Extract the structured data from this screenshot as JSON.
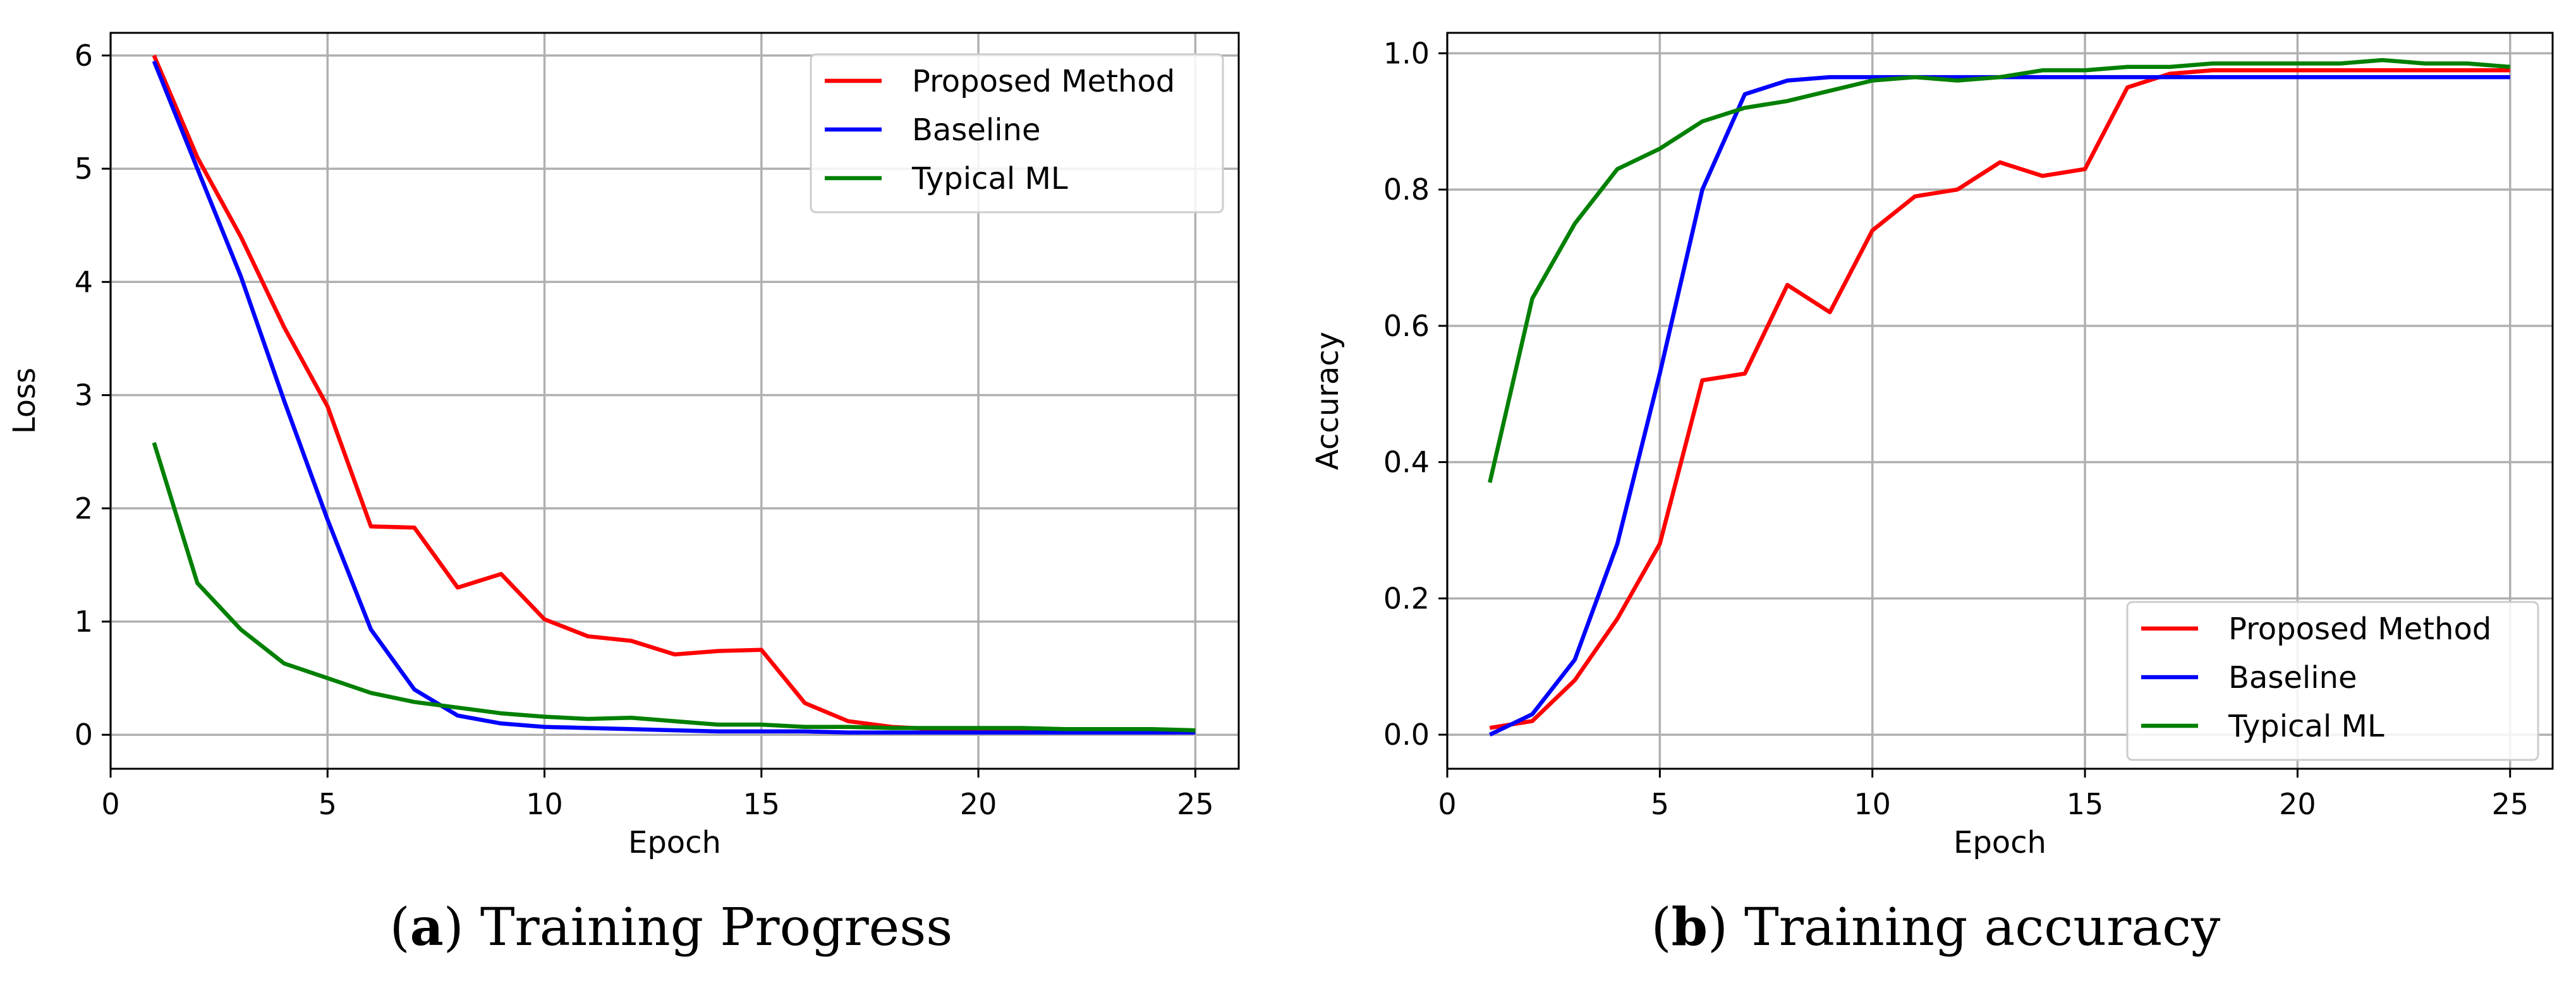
{
  "chart_data": [
    {
      "type": "line",
      "title": "",
      "xlabel": "Epoch",
      "ylabel": "Loss",
      "xlim": [
        0,
        26
      ],
      "ylim": [
        -0.3,
        6.2
      ],
      "xticks": [
        0,
        5,
        10,
        15,
        20,
        25
      ],
      "yticks": [
        0,
        1,
        2,
        3,
        4,
        5,
        6
      ],
      "xtick_labels": [
        "0",
        "5",
        "10",
        "15",
        "20",
        "25"
      ],
      "ytick_labels": [
        "0",
        "1",
        "2",
        "3",
        "4",
        "5",
        "6"
      ],
      "grid": true,
      "legend_position": "top-right",
      "x": [
        1,
        2,
        3,
        4,
        5,
        6,
        7,
        8,
        9,
        10,
        11,
        12,
        13,
        14,
        15,
        16,
        17,
        18,
        19,
        20,
        21,
        22,
        23,
        24,
        25
      ],
      "series": [
        {
          "name": "Proposed Method",
          "color": "#ff0000",
          "values": [
            6.0,
            5.1,
            4.4,
            3.6,
            2.9,
            1.84,
            1.83,
            1.3,
            1.42,
            1.02,
            0.87,
            0.83,
            0.71,
            0.74,
            0.75,
            0.28,
            0.12,
            0.07,
            0.05,
            0.05,
            0.04,
            0.04,
            0.04,
            0.03,
            0.03
          ]
        },
        {
          "name": "Baseline",
          "color": "#0000ff",
          "values": [
            5.95,
            5.0,
            4.05,
            2.95,
            1.9,
            0.93,
            0.4,
            0.17,
            0.1,
            0.07,
            0.06,
            0.05,
            0.04,
            0.03,
            0.03,
            0.03,
            0.02,
            0.02,
            0.02,
            0.02,
            0.02,
            0.02,
            0.02,
            0.02,
            0.02
          ]
        },
        {
          "name": "Typical ML",
          "color": "#008000",
          "values": [
            2.58,
            1.34,
            0.93,
            0.63,
            0.5,
            0.37,
            0.29,
            0.24,
            0.19,
            0.16,
            0.14,
            0.15,
            0.12,
            0.09,
            0.09,
            0.07,
            0.07,
            0.06,
            0.06,
            0.06,
            0.06,
            0.05,
            0.05,
            0.05,
            0.04
          ]
        }
      ],
      "caption": {
        "letter": "a",
        "text": "Training Progress"
      }
    },
    {
      "type": "line",
      "title": "",
      "xlabel": "Epoch",
      "ylabel": "Accuracy",
      "xlim": [
        0,
        26
      ],
      "ylim": [
        -0.05,
        1.03
      ],
      "xticks": [
        0,
        5,
        10,
        15,
        20,
        25
      ],
      "yticks": [
        0.0,
        0.2,
        0.4,
        0.6,
        0.8,
        1.0
      ],
      "xtick_labels": [
        "0",
        "5",
        "10",
        "15",
        "20",
        "25"
      ],
      "ytick_labels": [
        "0.0",
        "0.2",
        "0.4",
        "0.6",
        "0.8",
        "1.0"
      ],
      "grid": true,
      "legend_position": "bottom-right",
      "x": [
        1,
        2,
        3,
        4,
        5,
        6,
        7,
        8,
        9,
        10,
        11,
        12,
        13,
        14,
        15,
        16,
        17,
        18,
        19,
        20,
        21,
        22,
        23,
        24,
        25
      ],
      "series": [
        {
          "name": "Proposed Method",
          "color": "#ff0000",
          "values": [
            0.01,
            0.02,
            0.08,
            0.17,
            0.28,
            0.52,
            0.53,
            0.66,
            0.62,
            0.74,
            0.79,
            0.8,
            0.84,
            0.82,
            0.83,
            0.95,
            0.97,
            0.975,
            0.975,
            0.975,
            0.975,
            0.975,
            0.975,
            0.975,
            0.975
          ]
        },
        {
          "name": "Baseline",
          "color": "#0000ff",
          "values": [
            0.0,
            0.03,
            0.11,
            0.28,
            0.53,
            0.8,
            0.94,
            0.96,
            0.965,
            0.965,
            0.965,
            0.965,
            0.965,
            0.965,
            0.965,
            0.965,
            0.965,
            0.965,
            0.965,
            0.965,
            0.965,
            0.965,
            0.965,
            0.965,
            0.965
          ]
        },
        {
          "name": "Typical ML",
          "color": "#008000",
          "values": [
            0.37,
            0.64,
            0.75,
            0.83,
            0.86,
            0.9,
            0.92,
            0.93,
            0.945,
            0.96,
            0.965,
            0.96,
            0.965,
            0.975,
            0.975,
            0.98,
            0.98,
            0.985,
            0.985,
            0.985,
            0.985,
            0.99,
            0.985,
            0.985,
            0.98
          ]
        }
      ],
      "caption": {
        "letter": "b",
        "text": "Training accuracy"
      }
    }
  ]
}
